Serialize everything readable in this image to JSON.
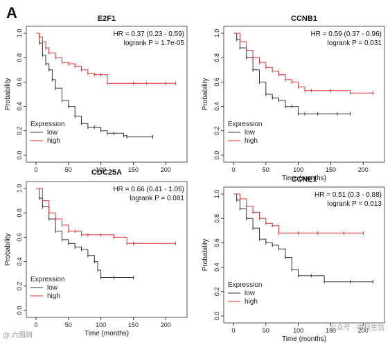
{
  "panel_label": "A",
  "watermarks": {
    "left": "@ 六图网",
    "right": "公众号 · 中科生信"
  },
  "colors": {
    "low": "#333333",
    "high": "#e03030",
    "frame": "#555555"
  },
  "chart_data": [
    {
      "type": "line",
      "title": "E2F1",
      "hr_text": "HR = 0.37 (0.23 - 0.59)",
      "p_text": "logrank P = 1.7e-05",
      "xlabel": "",
      "ylabel": "Probability",
      "xlim": [
        0,
        220
      ],
      "ylim": [
        0,
        1
      ],
      "xticks": [
        0,
        50,
        100,
        150,
        200
      ],
      "yticks": [
        "0.0",
        "0.2",
        "0.4",
        "0.6",
        "0.8",
        "1.0"
      ],
      "legend": {
        "title": "Expression",
        "entries": [
          "low",
          "high"
        ],
        "position": "bottom-left"
      },
      "series": [
        {
          "name": "low",
          "color_key": "low",
          "x": [
            0,
            5,
            10,
            15,
            20,
            25,
            30,
            40,
            50,
            60,
            70,
            80,
            90,
            100,
            110,
            120,
            135,
            140,
            180
          ],
          "y": [
            1.0,
            0.92,
            0.82,
            0.75,
            0.7,
            0.62,
            0.55,
            0.45,
            0.4,
            0.32,
            0.26,
            0.23,
            0.23,
            0.2,
            0.18,
            0.18,
            0.16,
            0.15,
            0.15
          ]
        },
        {
          "name": "high",
          "color_key": "high",
          "x": [
            0,
            5,
            10,
            15,
            20,
            30,
            40,
            50,
            60,
            70,
            80,
            90,
            100,
            110,
            150,
            170,
            200,
            215
          ],
          "y": [
            1.0,
            0.97,
            0.93,
            0.88,
            0.84,
            0.8,
            0.76,
            0.75,
            0.73,
            0.7,
            0.67,
            0.66,
            0.66,
            0.59,
            0.59,
            0.59,
            0.59,
            0.59
          ]
        }
      ]
    },
    {
      "type": "line",
      "title": "CCNB1",
      "hr_text": "HR = 0.59 (0.37 - 0.96)",
      "p_text": "logrank P = 0.031",
      "xlabel": "Time (months)",
      "ylabel": "Probability",
      "xlim": [
        0,
        220
      ],
      "ylim": [
        0,
        1
      ],
      "xticks": [
        0,
        50,
        100,
        150,
        200
      ],
      "yticks": [
        "0.0",
        "0.2",
        "0.4",
        "0.6",
        "0.8",
        "1.0"
      ],
      "legend": {
        "title": "Expression",
        "entries": [
          "low",
          "high"
        ],
        "position": "bottom-left"
      },
      "series": [
        {
          "name": "low",
          "color_key": "low",
          "x": [
            0,
            5,
            10,
            20,
            30,
            40,
            50,
            60,
            70,
            80,
            90,
            100,
            110,
            130,
            160,
            180
          ],
          "y": [
            1.0,
            0.95,
            0.88,
            0.8,
            0.7,
            0.6,
            0.5,
            0.47,
            0.45,
            0.4,
            0.4,
            0.34,
            0.34,
            0.34,
            0.34,
            0.34
          ]
        },
        {
          "name": "high",
          "color_key": "high",
          "x": [
            0,
            10,
            20,
            30,
            40,
            50,
            60,
            70,
            80,
            90,
            100,
            110,
            120,
            150,
            180,
            215
          ],
          "y": [
            1.0,
            0.93,
            0.86,
            0.8,
            0.76,
            0.72,
            0.69,
            0.66,
            0.62,
            0.6,
            0.56,
            0.53,
            0.53,
            0.53,
            0.51,
            0.51
          ]
        }
      ]
    },
    {
      "type": "line",
      "title": "CDC25A",
      "hr_text": "HR = 0.66 (0.41 - 1.06)",
      "p_text": "logrank P = 0.081",
      "xlabel": "Time (months)",
      "ylabel": "Probability",
      "xlim": [
        0,
        220
      ],
      "ylim": [
        0,
        1
      ],
      "xticks": [
        0,
        50,
        100,
        150,
        200
      ],
      "yticks": [
        "0.0",
        "0.2",
        "0.4",
        "0.6",
        "0.8",
        "1.0"
      ],
      "legend": {
        "title": "Expression",
        "entries": [
          "low",
          "high"
        ],
        "position": "bottom-left"
      },
      "series": [
        {
          "name": "low",
          "color_key": "low",
          "x": [
            0,
            5,
            10,
            20,
            30,
            40,
            50,
            60,
            70,
            80,
            90,
            95,
            100,
            120,
            150
          ],
          "y": [
            1.0,
            0.92,
            0.85,
            0.75,
            0.65,
            0.58,
            0.55,
            0.52,
            0.5,
            0.45,
            0.4,
            0.33,
            0.27,
            0.27,
            0.27
          ]
        },
        {
          "name": "high",
          "color_key": "high",
          "x": [
            0,
            10,
            20,
            30,
            40,
            50,
            60,
            70,
            80,
            100,
            120,
            140,
            150,
            215
          ],
          "y": [
            1.0,
            0.9,
            0.8,
            0.75,
            0.7,
            0.65,
            0.65,
            0.62,
            0.62,
            0.62,
            0.6,
            0.55,
            0.55,
            0.55
          ]
        }
      ]
    },
    {
      "type": "line",
      "title": "CCNE1",
      "hr_text": "HR = 0.51 (0.3 - 0.88)",
      "p_text": "logrank P = 0.013",
      "xlabel": "Time (months)",
      "ylabel": "Probability",
      "xlim": [
        0,
        220
      ],
      "ylim": [
        0,
        1
      ],
      "xticks": [
        0,
        50,
        100,
        150,
        200
      ],
      "yticks": [
        "0.0",
        "0.2",
        "0.4",
        "0.6",
        "0.8",
        "1.0"
      ],
      "legend": {
        "title": "Expression",
        "entries": [
          "low",
          "high"
        ],
        "position": "bottom-left"
      },
      "series": [
        {
          "name": "low",
          "color_key": "low",
          "x": [
            0,
            5,
            10,
            20,
            30,
            40,
            50,
            60,
            70,
            80,
            90,
            100,
            120,
            140,
            180,
            215
          ],
          "y": [
            1.0,
            0.95,
            0.88,
            0.8,
            0.72,
            0.63,
            0.6,
            0.58,
            0.55,
            0.48,
            0.38,
            0.33,
            0.33,
            0.28,
            0.28,
            0.28
          ]
        },
        {
          "name": "high",
          "color_key": "high",
          "x": [
            0,
            10,
            20,
            30,
            40,
            50,
            60,
            70,
            100,
            130,
            170,
            200
          ],
          "y": [
            1.0,
            0.96,
            0.9,
            0.85,
            0.8,
            0.76,
            0.74,
            0.68,
            0.68,
            0.68,
            0.68,
            0.68
          ]
        }
      ]
    }
  ]
}
